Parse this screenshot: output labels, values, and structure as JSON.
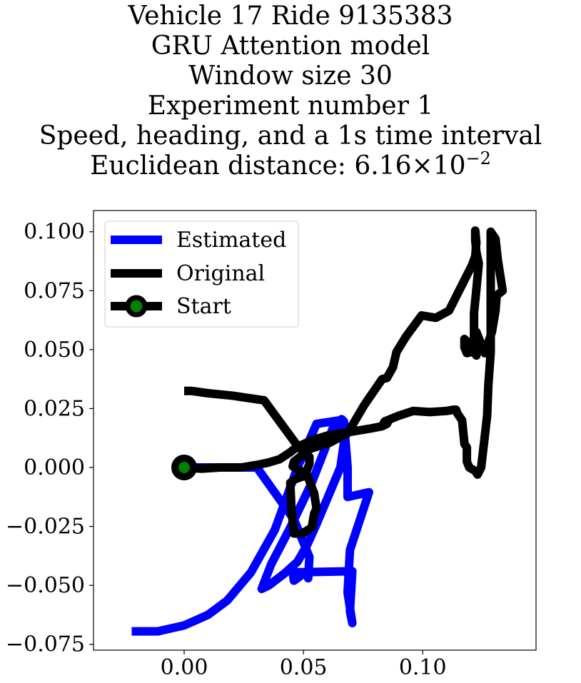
{
  "chart_data": {
    "type": "line",
    "title_lines": [
      "Vehicle 17 Ride 9135383",
      "GRU Attention model",
      "Window size 30",
      "Experiment number 1",
      "Speed, heading, and a 1s time interval"
    ],
    "distance_line": {
      "prefix": "Euclidean distance: ",
      "mantissa": "6.16",
      "times": "×",
      "base": "10",
      "exponent": "−2"
    },
    "xlabel": "",
    "ylabel": "",
    "xlim": [
      -0.038,
      0.1475
    ],
    "ylim": [
      -0.0775,
      0.109
    ],
    "xticks": [
      0.0,
      0.05,
      0.1
    ],
    "xtick_labels": [
      "0.00",
      "0.05",
      "0.10"
    ],
    "yticks": [
      0.1,
      0.075,
      0.05,
      0.025,
      0.0,
      -0.025,
      -0.05,
      -0.075
    ],
    "ytick_labels": [
      "0.100",
      "0.075",
      "0.050",
      "0.025",
      "0.000",
      "−0.025",
      "−0.050",
      "−0.075"
    ],
    "grid": false,
    "legend_position": "upper left",
    "series": [
      {
        "name": "Estimated",
        "color": "#0000ff",
        "x": [
          0.0,
          0.0305,
          0.046,
          0.0525,
          0.052,
          0.0515,
          0.046,
          0.0455,
          0.0705,
          0.0695,
          0.0705,
          0.0685,
          0.0695,
          0.0775,
          0.0685,
          0.0685,
          0.067,
          0.066,
          0.063,
          0.0585,
          0.0535,
          0.0445,
          0.0365,
          0.0325,
          0.0355,
          0.042,
          0.0475,
          0.0515,
          0.0555,
          0.0605,
          0.0655,
          0.067,
          0.065,
          0.0555,
          0.0475,
          0.038,
          0.028,
          0.018,
          0.01,
          0.0,
          -0.011,
          -0.022
        ],
        "y": [
          0.0,
          0.0,
          -0.022,
          -0.038,
          -0.047,
          -0.044,
          -0.048,
          -0.0445,
          -0.044,
          -0.061,
          -0.066,
          -0.053,
          -0.035,
          -0.0105,
          -0.0125,
          0.0,
          0.0195,
          0.0205,
          0.0185,
          0.0065,
          -0.0065,
          -0.0255,
          -0.041,
          -0.0515,
          -0.05,
          -0.045,
          -0.04,
          -0.033,
          -0.024,
          -0.012,
          0.0,
          0.0105,
          0.02,
          0.0185,
          0.0,
          -0.0265,
          -0.0445,
          -0.0565,
          -0.0625,
          -0.067,
          -0.0695,
          -0.0695
        ]
      },
      {
        "name": "Original",
        "color": "#000000",
        "x": [
          0.0,
          0.007,
          0.015,
          0.024,
          0.03,
          0.035,
          0.04,
          0.0445,
          0.047,
          0.0535,
          0.06,
          0.066,
          0.072,
          0.078,
          0.083,
          0.085,
          0.0855,
          0.0835,
          0.084,
          0.09,
          0.096,
          0.103,
          0.11,
          0.113,
          0.114,
          0.1145,
          0.1165,
          0.1175,
          0.1185,
          0.1185,
          0.1195,
          0.122,
          0.123,
          0.1245,
          0.126,
          0.127,
          0.1275,
          0.1285,
          0.1285,
          0.1285,
          0.1285,
          0.1285,
          0.1305,
          0.1315,
          0.1335,
          0.131,
          0.1305,
          0.129,
          0.128,
          0.126,
          0.1225,
          0.1225,
          0.1225,
          0.1205,
          0.1185,
          0.1175,
          0.1175,
          0.1185,
          0.1205,
          0.1215,
          0.1215,
          0.1215,
          0.1225,
          0.1235,
          0.1225,
          0.122,
          0.122,
          0.1225,
          0.122,
          0.1205,
          0.118,
          0.111,
          0.1055,
          0.0995,
          0.093,
          0.089,
          0.0875,
          0.085,
          0.083,
          0.0755,
          0.0685,
          0.061,
          0.053,
          0.046,
          0.0455,
          0.0515,
          0.0545,
          0.0555,
          0.0545,
          0.0535,
          0.0495,
          0.046,
          0.045,
          0.0445,
          0.0465,
          0.0505,
          0.0525,
          0.0525,
          0.048,
          0.04,
          0.0335,
          0.02,
          0.01,
          0.003,
          0.0
        ],
        "y": [
          0.0,
          -0.0005,
          0.0,
          0.0,
          0.001,
          0.002,
          0.0035,
          0.0065,
          0.0085,
          0.0115,
          0.0135,
          0.0145,
          0.0155,
          0.0165,
          0.0175,
          0.0185,
          0.0195,
          0.0185,
          0.0195,
          0.022,
          0.024,
          0.0235,
          0.024,
          0.0245,
          0.0245,
          0.023,
          0.02,
          0.01,
          0.0085,
          0.0025,
          0.0,
          -0.0015,
          -0.003,
          0.0,
          0.013,
          0.022,
          0.035,
          0.049,
          0.059,
          0.085,
          0.098,
          0.1,
          0.097,
          0.088,
          0.075,
          0.073,
          0.0665,
          0.0575,
          0.0545,
          0.0485,
          0.0575,
          0.0575,
          0.0475,
          0.0505,
          0.0535,
          0.0545,
          0.051,
          0.0485,
          0.049,
          0.0505,
          0.0545,
          0.0655,
          0.0755,
          0.0865,
          0.0915,
          0.0965,
          0.1005,
          0.0955,
          0.0895,
          0.0855,
          0.0805,
          0.0665,
          0.0635,
          0.0645,
          0.0555,
          0.049,
          0.0425,
          0.038,
          0.0375,
          0.0265,
          0.0145,
          0.0105,
          0.008,
          0.0025,
          0.0005,
          -0.003,
          -0.011,
          -0.0175,
          -0.0195,
          -0.0255,
          -0.028,
          -0.028,
          -0.018,
          -0.0065,
          -0.005,
          -0.0035,
          0.0015,
          0.0045,
          0.0085,
          0.0195,
          0.0285,
          0.0305,
          0.0315,
          0.0325,
          0.0325
        ]
      },
      {
        "name": "Start",
        "color": "#000000",
        "marker_face_color": "#008000",
        "x": [
          0.0
        ],
        "y": [
          0.0
        ]
      }
    ]
  }
}
